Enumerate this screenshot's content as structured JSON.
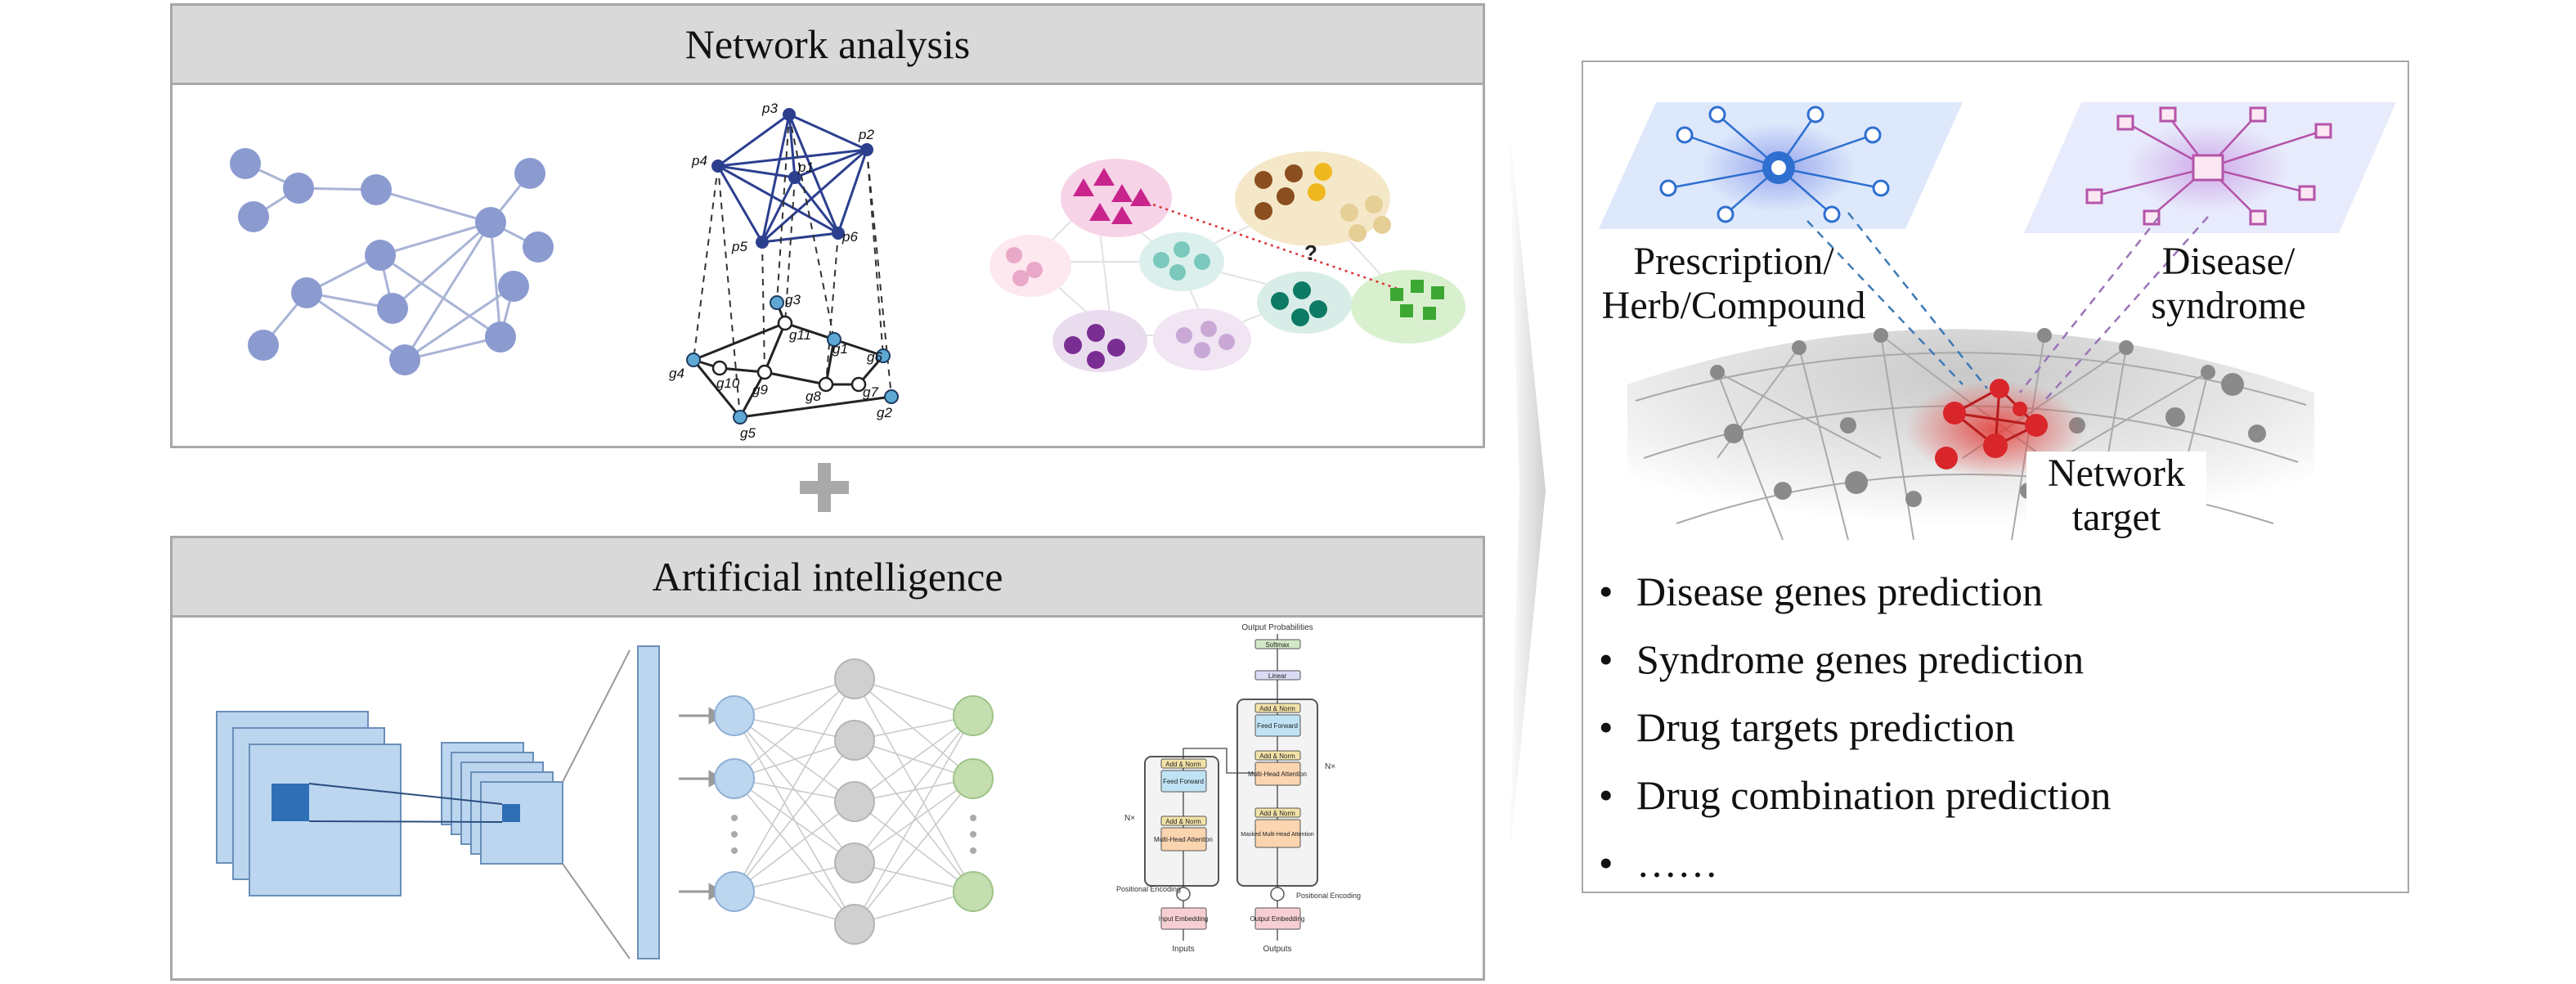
{
  "network_analysis": {
    "title": "Network analysis",
    "node_labels_top": [
      "p1",
      "p2",
      "p3",
      "p4",
      "p5",
      "p6"
    ],
    "node_labels_bottom": [
      "g1",
      "g2",
      "g3",
      "g4",
      "g5",
      "g6",
      "g7",
      "g8",
      "g9",
      "g10",
      "g11"
    ],
    "question_mark": "?"
  },
  "artificial_intelligence": {
    "title": "Artificial intelligence",
    "transformer": {
      "output_probabilities": "Output Probabilities",
      "softmax": "Softmax",
      "linear": "Linear",
      "add_norm": "Add & Norm",
      "feed_forward": "Feed Forward",
      "multi_head_attention": "Multi-Head Attention",
      "masked_multi_head_attention": "Masked Multi-Head Attention",
      "nx": "N×",
      "positional_encoding": "Positional Encoding",
      "input_embedding": "Input Embedding",
      "output_embedding": "Output Embedding",
      "inputs": "Inputs",
      "outputs": "Outputs"
    }
  },
  "network_target": {
    "label_prescription": "Prescription/\nHerb/Compound",
    "label_disease": "Disease/\nsyndrome",
    "label_target": "Network\ntarget",
    "bullets": [
      "Disease genes prediction",
      "Syndrome genes prediction",
      "Drug targets prediction",
      "Drug combination prediction",
      "……"
    ]
  },
  "colors": {
    "panel_header": "#d9d9d9",
    "panel_border": "#a8a8a8",
    "graph_node": "#8b9bd0",
    "dark_blue": "#2c3f8f",
    "cnn_blue": "#2f6fb5",
    "nn_blue": "#bcd6ef",
    "nn_gray": "#d0d0d0",
    "nn_green": "#c4deb0",
    "target_red": "#d9262b"
  }
}
